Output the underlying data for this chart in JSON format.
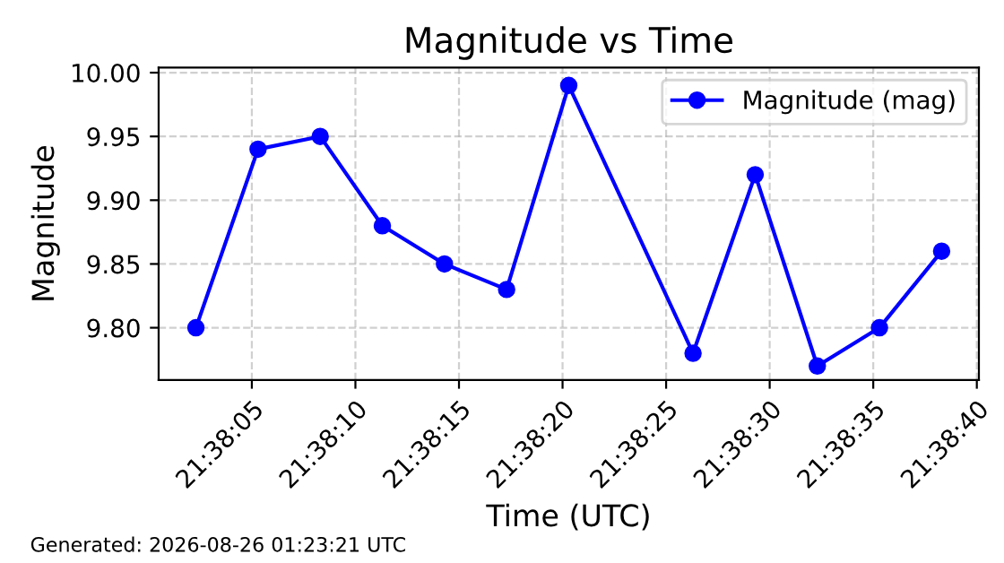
{
  "chart_data": {
    "type": "line",
    "title": "Magnitude vs Time",
    "xlabel": "Time (UTC)",
    "ylabel": "Magnitude",
    "x": [
      "2026-08-26T21:38:02.3",
      "2026-08-26T21:38:05.3",
      "2026-08-26T21:38:08.3",
      "2026-08-26T21:38:11.3",
      "2026-08-26T21:38:14.3",
      "2026-08-26T21:38:17.3",
      "2026-08-26T21:38:20.3",
      "2026-08-26T21:38:26.3",
      "2026-08-26T21:38:29.3",
      "2026-08-26T21:38:32.3",
      "2026-08-26T21:38:35.3",
      "2026-08-26T21:38:38.3"
    ],
    "series": [
      {
        "name": "Magnitude (mag)",
        "color": "#0000ff",
        "values": [
          9.8,
          9.94,
          9.95,
          9.88,
          9.85,
          9.83,
          9.99,
          9.78,
          9.92,
          9.77,
          9.8,
          9.86
        ]
      }
    ],
    "xlim": [
      "2026-08-26T21:38:00.5",
      "2026-08-26T21:38:40.1"
    ],
    "xticks": [
      {
        "value": "2026-08-26T21:38:05",
        "label": "21:38:05"
      },
      {
        "value": "2026-08-26T21:38:10",
        "label": "21:38:10"
      },
      {
        "value": "2026-08-26T21:38:15",
        "label": "21:38:15"
      },
      {
        "value": "2026-08-26T21:38:20",
        "label": "21:38:20"
      },
      {
        "value": "2026-08-26T21:38:25",
        "label": "21:38:25"
      },
      {
        "value": "2026-08-26T21:38:30",
        "label": "21:38:30"
      },
      {
        "value": "2026-08-26T21:38:35",
        "label": "21:38:35"
      },
      {
        "value": "2026-08-26T21:38:40",
        "label": "21:38:40"
      }
    ],
    "ylim": [
      9.759,
      10.004
    ],
    "yticks": [
      {
        "value": 9.8,
        "label": "9.80"
      },
      {
        "value": 9.85,
        "label": "9.85"
      },
      {
        "value": 9.9,
        "label": "9.90"
      },
      {
        "value": 9.95,
        "label": "9.95"
      },
      {
        "value": 10.0,
        "label": "10.00"
      }
    ],
    "grid": true,
    "legend": "top right",
    "marker": "circle",
    "line_style": "solid",
    "annotations": [
      "Generated: 2026-08-26 01:23:21 UTC"
    ]
  }
}
